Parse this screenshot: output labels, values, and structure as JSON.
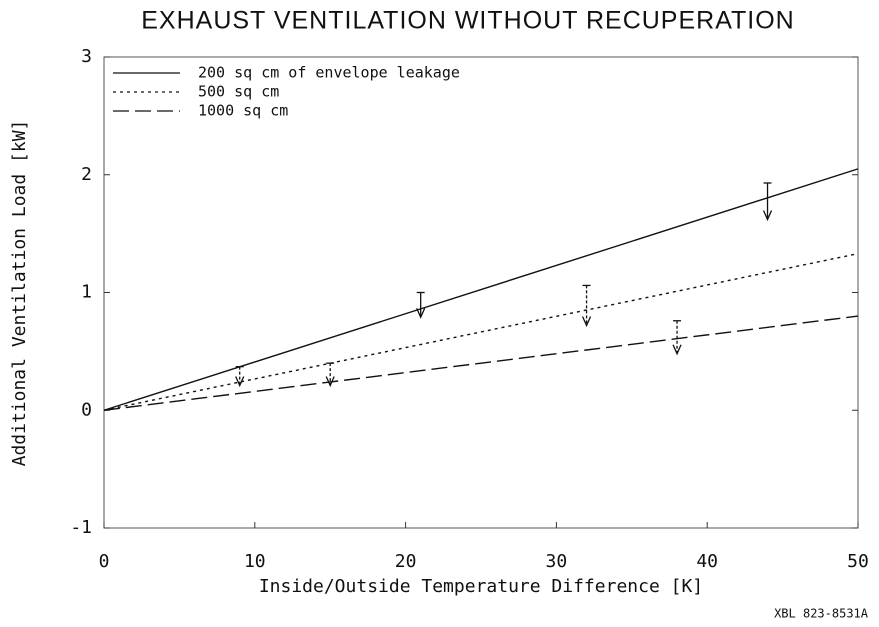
{
  "chart_data": {
    "type": "line",
    "title": "EXHAUST VENTILATION WITHOUT RECUPERATION",
    "x_label": "Inside/Outside Temperature Difference [K]",
    "y_label": "Additional Ventilation Load [kW]",
    "annotation": "XBL 823-8531A",
    "xlim": [
      0,
      50
    ],
    "xticks": [
      0,
      10,
      20,
      30,
      40,
      50
    ],
    "ylim": [
      -1,
      3
    ],
    "yticks": [
      -1,
      0,
      1,
      2,
      3
    ],
    "legend": "upper left",
    "series": [
      {
        "name": "200 sq cm of envelope leakage",
        "color": "#111111",
        "dash": "none",
        "x": [
          0,
          50
        ],
        "values": [
          0,
          2.05
        ],
        "markers": {
          "x": [
            21,
            44
          ],
          "high": [
            1.0,
            1.93
          ],
          "low": [
            0.79,
            1.62
          ]
        }
      },
      {
        "name": "500 sq cm",
        "color": "#111111",
        "dash": "3,4",
        "x": [
          0,
          50
        ],
        "values": [
          0,
          1.33
        ],
        "markers": {
          "x": [
            9,
            32
          ],
          "high": [
            0.37,
            1.06
          ],
          "low": [
            0.21,
            0.72
          ]
        }
      },
      {
        "name": "1000 sq cm",
        "color": "#111111",
        "dash": "16,6",
        "x": [
          0,
          50
        ],
        "values": [
          0,
          0.8
        ],
        "markers": {
          "x": [
            15,
            38
          ],
          "high": [
            0.4,
            0.76
          ],
          "low": [
            0.21,
            0.48
          ]
        }
      }
    ]
  }
}
